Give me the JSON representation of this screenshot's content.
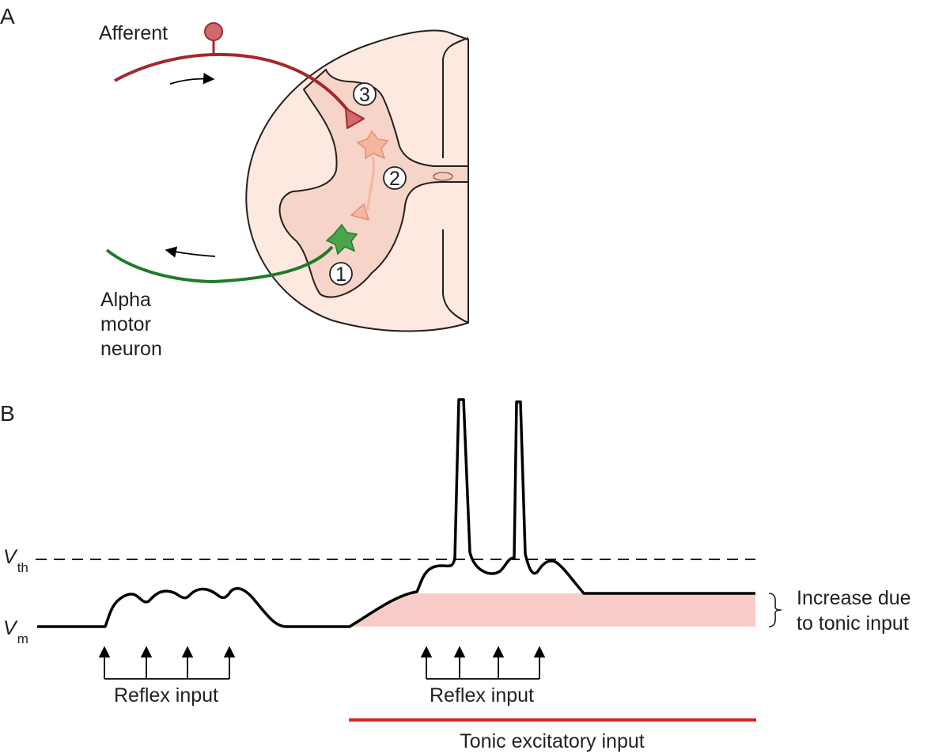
{
  "panel_a": {
    "label": "A",
    "afferent_label": "Afferent",
    "motor_label_lines": [
      "Alpha",
      "motor",
      "neuron"
    ],
    "markers": [
      "1",
      "2",
      "3"
    ]
  },
  "panel_b": {
    "label": "B",
    "vth_main": "V",
    "vth_sub": "th",
    "vm_main": "V",
    "vm_sub": "m",
    "reflex_input_left": "Reflex input",
    "reflex_input_right": "Reflex input",
    "tonic_label": "Tonic excitatory input",
    "increase_label_lines": [
      "Increase due",
      "to tonic input"
    ]
  },
  "colors": {
    "afferent": "#a3282b",
    "afferent_soma": "#cf6b6f",
    "motor_axon": "#1f7a2a",
    "motor_soma": "#4aa54a",
    "interneuron": "#f3b7a0",
    "cord_fill": "#fde9df",
    "gray_matter": "#f6d4c7",
    "tonic_fill": "#f8ccc8",
    "tonic_line": "#d6241d"
  }
}
